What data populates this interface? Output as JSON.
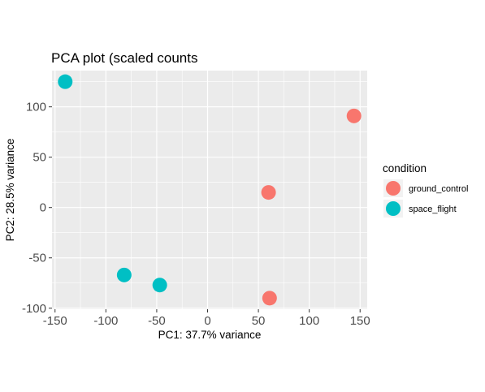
{
  "chart_data": {
    "type": "scatter",
    "title": "PCA plot (scaled counts",
    "xlabel": "PC1: 37.7% variance",
    "ylabel": "PC2: 28.5% variance",
    "xlim": [
      -153,
      157
    ],
    "ylim": [
      -101,
      136
    ],
    "xticks": [
      -150,
      -100,
      -50,
      0,
      50,
      100,
      150
    ],
    "yticks": [
      -100,
      -50,
      0,
      50,
      100
    ],
    "xtick_labels": [
      "-150",
      "-100",
      "-50",
      "0",
      "50",
      "100",
      "150"
    ],
    "ytick_labels": [
      "-100",
      "-50",
      "0",
      "50",
      "100"
    ],
    "grid": true,
    "legend": {
      "title": "condition",
      "placement": "right",
      "entries": [
        {
          "label": "ground_control",
          "color": "#F8766D"
        },
        {
          "label": "space_flight",
          "color": "#00BFC4"
        }
      ]
    },
    "series": [
      {
        "name": "ground_control",
        "color": "#F8766D",
        "points": [
          {
            "x": 144,
            "y": 91
          },
          {
            "x": 60,
            "y": 15
          },
          {
            "x": 61,
            "y": -90
          }
        ]
      },
      {
        "name": "space_flight",
        "color": "#00BFC4",
        "points": [
          {
            "x": -140,
            "y": 125
          },
          {
            "x": -82,
            "y": -67
          },
          {
            "x": -47,
            "y": -77
          }
        ]
      }
    ]
  }
}
